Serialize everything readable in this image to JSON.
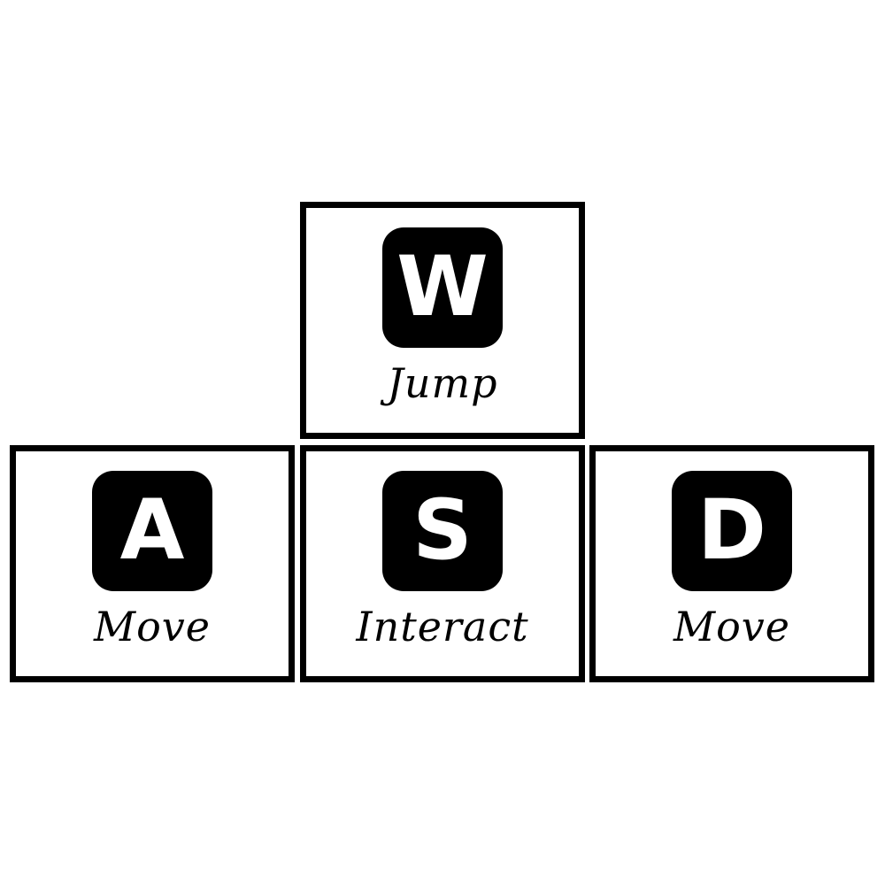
{
  "keys": [
    {
      "key": "W",
      "action": "Jump"
    },
    {
      "key": "A",
      "action": "Move"
    },
    {
      "key": "S",
      "action": "Interact"
    },
    {
      "key": "D",
      "action": "Move"
    }
  ],
  "colors": {
    "background": "#ffffff",
    "border": "#000000",
    "keycap": "#000000",
    "keycap_text": "#ffffff"
  }
}
